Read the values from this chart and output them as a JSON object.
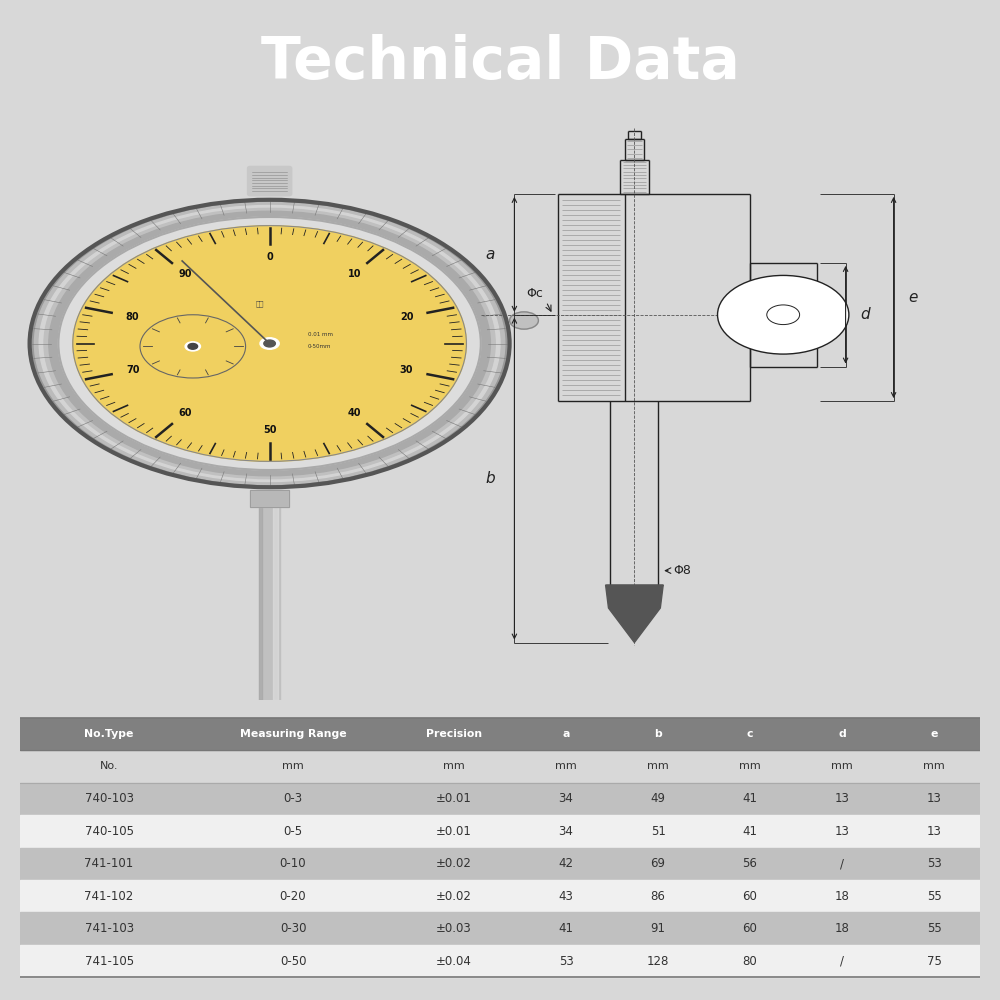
{
  "title": "Technical Data",
  "title_bg": "#111111",
  "title_color": "#ffffff",
  "title_fontsize": 42,
  "page_bg": "#d8d8d8",
  "content_bg": "#ffffff",
  "table_header_bg": "#808080",
  "table_odd_bg": "#c0c0c0",
  "table_even_bg": "#f0f0f0",
  "table_header_color": "#ffffff",
  "table_data_color": "#333333",
  "columns": [
    "No.Type",
    "Measuring Range",
    "Precision",
    "a",
    "b",
    "c",
    "d",
    "e"
  ],
  "subheaders": [
    "No.",
    "mm",
    "mm",
    "mm",
    "mm",
    "mm",
    "mm",
    "mm"
  ],
  "rows": [
    [
      "740-103",
      "0-3",
      "±0.01",
      "34",
      "49",
      "41",
      "13",
      "13"
    ],
    [
      "740-105",
      "0-5",
      "±0.01",
      "34",
      "51",
      "41",
      "13",
      "13"
    ],
    [
      "741-101",
      "0-10",
      "±0.02",
      "42",
      "69",
      "56",
      "/",
      "53"
    ],
    [
      "741-102",
      "0-20",
      "±0.02",
      "43",
      "86",
      "60",
      "18",
      "55"
    ],
    [
      "741-103",
      "0-30",
      "±0.03",
      "41",
      "91",
      "60",
      "18",
      "55"
    ],
    [
      "741-105",
      "0-50",
      "±0.04",
      "53",
      "128",
      "80",
      "/",
      "75"
    ]
  ],
  "dial_face_color": "#f0d060",
  "dial_rim_light": "#d4d4d4",
  "dial_rim_dark": "#888888",
  "stem_color": "#c0c0c0",
  "stem_dark": "#a0a0a0",
  "diagram_lc": "#222222",
  "diagram_bg": "#ffffff"
}
